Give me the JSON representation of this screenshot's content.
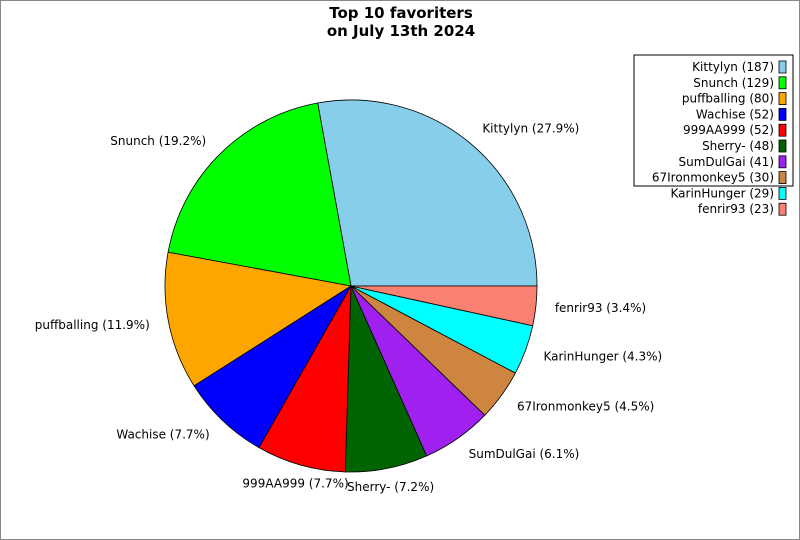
{
  "chart_data": {
    "type": "pie",
    "title": [
      "Top 10 favoriters",
      "on July 13th 2024"
    ],
    "start_angle_deg": 0,
    "direction": "counterclockwise",
    "legend_position": "top-right",
    "slices": [
      {
        "name": "Kittylyn",
        "value": 187,
        "percent": "27.9%",
        "color": "#87ceeb"
      },
      {
        "name": "Snunch",
        "value": 129,
        "percent": "19.2%",
        "color": "#00ff00"
      },
      {
        "name": "puffballing",
        "value": 80,
        "percent": "11.9%",
        "color": "#ffa500"
      },
      {
        "name": "Wachise",
        "value": 52,
        "percent": "7.7%",
        "color": "#0000ff"
      },
      {
        "name": "999AA999",
        "value": 52,
        "percent": "7.7%",
        "color": "#ff0000"
      },
      {
        "name": "Sherry-",
        "value": 48,
        "percent": "7.2%",
        "color": "#006400"
      },
      {
        "name": "SumDulGai",
        "value": 41,
        "percent": "6.1%",
        "color": "#a020f0"
      },
      {
        "name": "67Ironmonkey5",
        "value": 30,
        "percent": "4.5%",
        "color": "#cd853f"
      },
      {
        "name": "KarinHunger",
        "value": 29,
        "percent": "4.3%",
        "color": "#00ffff"
      },
      {
        "name": "fenrir93",
        "value": 23,
        "percent": "3.4%",
        "color": "#fa8072"
      }
    ]
  }
}
